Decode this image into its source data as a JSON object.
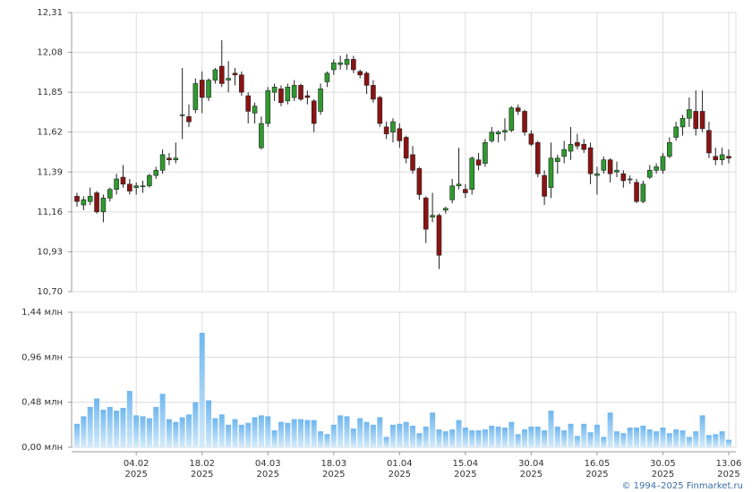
{
  "chart_data": [
    {
      "type": "candlestick",
      "up_color": "#2f9a2f",
      "down_color": "#8b1313",
      "grid": true,
      "ylim": [
        10.7,
        12.31
      ],
      "yticks": [
        {
          "value": 10.7,
          "label": "10,70"
        },
        {
          "value": 10.93,
          "label": "10,93"
        },
        {
          "value": 11.16,
          "label": "11,16"
        },
        {
          "value": 11.39,
          "label": "11,39"
        },
        {
          "value": 11.62,
          "label": "11,62"
        },
        {
          "value": 11.85,
          "label": "11,85"
        },
        {
          "value": 12.08,
          "label": "12,08"
        },
        {
          "value": 12.31,
          "label": "12,31"
        }
      ],
      "open": [
        11.25,
        11.2,
        11.22,
        11.27,
        11.16,
        11.24,
        11.29,
        11.36,
        11.32,
        11.3,
        11.31,
        11.31,
        11.37,
        11.4,
        11.47,
        11.46,
        11.72,
        11.71,
        11.75,
        11.92,
        11.82,
        11.92,
        12.0,
        11.92,
        11.96,
        11.95,
        11.83,
        11.73,
        11.53,
        11.67,
        11.85,
        11.87,
        11.8,
        11.82,
        11.89,
        11.83,
        11.8,
        11.74,
        11.91,
        11.98,
        12.01,
        12.01,
        12.04,
        11.97,
        11.96,
        11.89,
        11.82,
        11.65,
        11.62,
        11.64,
        11.59,
        11.49,
        11.41,
        11.24,
        11.13,
        11.14,
        11.17,
        11.23,
        11.31,
        11.29,
        11.29,
        11.46,
        11.44,
        11.57,
        11.61,
        11.62,
        11.63,
        11.76,
        11.74,
        11.61,
        11.56,
        11.37,
        11.3,
        11.45,
        11.48,
        11.51,
        11.56,
        11.55,
        11.53,
        11.37,
        11.4,
        11.46,
        11.39,
        11.38,
        11.35,
        11.33,
        11.22,
        11.36,
        11.4,
        11.4,
        11.48,
        11.59,
        11.65,
        11.7,
        11.74,
        11.74,
        11.63,
        11.48,
        11.46,
        11.48
      ],
      "high": [
        11.27,
        11.25,
        11.3,
        11.28,
        11.26,
        11.3,
        11.38,
        11.43,
        11.35,
        11.33,
        11.34,
        11.38,
        11.42,
        11.52,
        11.5,
        11.56,
        11.99,
        11.78,
        11.93,
        11.97,
        11.93,
        11.99,
        12.15,
        12.03,
        11.99,
        11.97,
        11.85,
        11.79,
        11.71,
        11.88,
        11.9,
        11.89,
        11.9,
        11.92,
        11.9,
        11.86,
        11.81,
        11.9,
        11.97,
        12.04,
        12.06,
        12.07,
        12.06,
        11.98,
        11.97,
        11.92,
        11.83,
        11.68,
        11.7,
        11.67,
        11.6,
        11.54,
        11.42,
        11.25,
        11.27,
        11.15,
        11.19,
        11.35,
        11.53,
        11.32,
        11.48,
        11.5,
        11.58,
        11.65,
        11.63,
        11.7,
        11.77,
        11.78,
        11.75,
        11.63,
        11.57,
        11.4,
        11.56,
        11.49,
        11.57,
        11.65,
        11.61,
        11.58,
        11.56,
        11.42,
        11.48,
        11.47,
        11.45,
        11.4,
        11.37,
        11.35,
        11.34,
        11.43,
        11.44,
        11.5,
        11.59,
        11.68,
        11.72,
        11.82,
        11.86,
        11.86,
        11.68,
        11.53,
        11.53,
        11.52
      ],
      "low": [
        11.19,
        11.17,
        11.2,
        11.15,
        11.1,
        11.22,
        11.26,
        11.3,
        11.26,
        11.26,
        11.27,
        11.3,
        11.35,
        11.38,
        11.43,
        11.44,
        11.58,
        11.65,
        11.73,
        11.73,
        11.8,
        11.9,
        11.88,
        11.85,
        11.89,
        11.83,
        11.67,
        11.67,
        11.52,
        11.65,
        11.8,
        11.77,
        11.78,
        11.8,
        11.8,
        11.78,
        11.62,
        11.72,
        11.88,
        11.95,
        11.98,
        11.98,
        11.96,
        11.93,
        11.84,
        11.79,
        11.65,
        11.58,
        11.56,
        11.53,
        11.44,
        11.38,
        11.23,
        10.98,
        11.1,
        10.83,
        11.15,
        11.21,
        11.29,
        11.24,
        11.26,
        11.4,
        11.42,
        11.56,
        11.56,
        11.57,
        11.62,
        11.72,
        11.6,
        11.54,
        11.36,
        11.2,
        11.24,
        11.38,
        11.44,
        11.46,
        11.52,
        11.5,
        11.32,
        11.26,
        11.38,
        11.33,
        11.36,
        11.3,
        11.32,
        11.21,
        11.21,
        11.35,
        11.38,
        11.38,
        11.47,
        11.57,
        11.6,
        11.65,
        11.6,
        11.62,
        11.47,
        11.43,
        11.43,
        11.44
      ],
      "close": [
        11.22,
        11.23,
        11.25,
        11.16,
        11.24,
        11.29,
        11.35,
        11.32,
        11.28,
        11.31,
        11.31,
        11.37,
        11.4,
        11.49,
        11.46,
        11.47,
        11.72,
        11.68,
        11.9,
        11.82,
        11.92,
        11.98,
        11.9,
        11.93,
        11.95,
        11.85,
        11.74,
        11.77,
        11.67,
        11.86,
        11.88,
        11.79,
        11.88,
        11.89,
        11.81,
        11.82,
        11.67,
        11.87,
        11.96,
        12.02,
        12.02,
        12.04,
        11.98,
        11.95,
        11.89,
        11.81,
        11.67,
        11.61,
        11.68,
        11.57,
        11.47,
        11.4,
        11.26,
        11.06,
        11.14,
        10.91,
        11.18,
        11.31,
        11.32,
        11.27,
        11.47,
        11.43,
        11.56,
        11.62,
        11.62,
        11.63,
        11.76,
        11.74,
        11.62,
        11.55,
        11.38,
        11.25,
        11.47,
        11.47,
        11.52,
        11.55,
        11.54,
        11.52,
        11.38,
        11.38,
        11.46,
        11.38,
        11.4,
        11.34,
        11.35,
        11.22,
        11.32,
        11.4,
        11.42,
        11.48,
        11.56,
        11.65,
        11.7,
        11.75,
        11.64,
        11.64,
        11.5,
        11.46,
        11.49,
        11.47
      ]
    },
    {
      "type": "bar",
      "color": "#8cc8f2",
      "grid": true,
      "ylim": [
        0,
        1.44
      ],
      "yticks": [
        {
          "value": 0,
          "label": "0,00 млн"
        },
        {
          "value": 0.48,
          "label": "0,48 млн"
        },
        {
          "value": 0.96,
          "label": "0,96 млн"
        },
        {
          "value": 1.44,
          "label": "1,44 млн"
        }
      ],
      "categories": [
        null,
        null,
        null,
        null,
        null,
        null,
        null,
        null,
        null,
        "04.02 2025",
        null,
        null,
        null,
        null,
        null,
        null,
        null,
        null,
        null,
        "18.02 2025",
        null,
        null,
        null,
        null,
        null,
        null,
        null,
        null,
        null,
        "04.03 2025",
        null,
        null,
        null,
        null,
        null,
        null,
        null,
        null,
        null,
        "18.03 2025",
        null,
        null,
        null,
        null,
        null,
        null,
        null,
        null,
        null,
        "01.04 2025",
        null,
        null,
        null,
        null,
        null,
        null,
        null,
        null,
        null,
        "15.04 2025",
        null,
        null,
        null,
        null,
        null,
        null,
        null,
        null,
        null,
        "30.04 2025",
        null,
        null,
        null,
        null,
        null,
        null,
        null,
        null,
        null,
        "16.05 2025",
        null,
        null,
        null,
        null,
        null,
        null,
        null,
        null,
        null,
        "30.05 2025",
        null,
        null,
        null,
        null,
        null,
        null,
        null,
        null,
        null,
        "13.06 2025"
      ],
      "values": [
        0.25,
        0.33,
        0.43,
        0.52,
        0.4,
        0.43,
        0.39,
        0.42,
        0.6,
        0.34,
        0.33,
        0.31,
        0.43,
        0.57,
        0.3,
        0.27,
        0.32,
        0.35,
        0.48,
        1.22,
        0.5,
        0.31,
        0.35,
        0.24,
        0.3,
        0.24,
        0.26,
        0.32,
        0.34,
        0.33,
        0.18,
        0.27,
        0.26,
        0.3,
        0.3,
        0.29,
        0.29,
        0.17,
        0.14,
        0.24,
        0.34,
        0.33,
        0.2,
        0.31,
        0.27,
        0.24,
        0.32,
        0.11,
        0.24,
        0.25,
        0.27,
        0.23,
        0.15,
        0.22,
        0.37,
        0.19,
        0.17,
        0.19,
        0.29,
        0.21,
        0.18,
        0.18,
        0.19,
        0.23,
        0.22,
        0.21,
        0.27,
        0.14,
        0.19,
        0.22,
        0.22,
        0.18,
        0.39,
        0.22,
        0.18,
        0.25,
        0.12,
        0.25,
        0.16,
        0.24,
        0.11,
        0.37,
        0.17,
        0.15,
        0.21,
        0.21,
        0.23,
        0.19,
        0.17,
        0.21,
        0.15,
        0.19,
        0.18,
        0.11,
        0.17,
        0.34,
        0.13,
        0.14,
        0.17,
        0.08
      ]
    }
  ],
  "source": "© 1994–2025 Finmarket.ru"
}
